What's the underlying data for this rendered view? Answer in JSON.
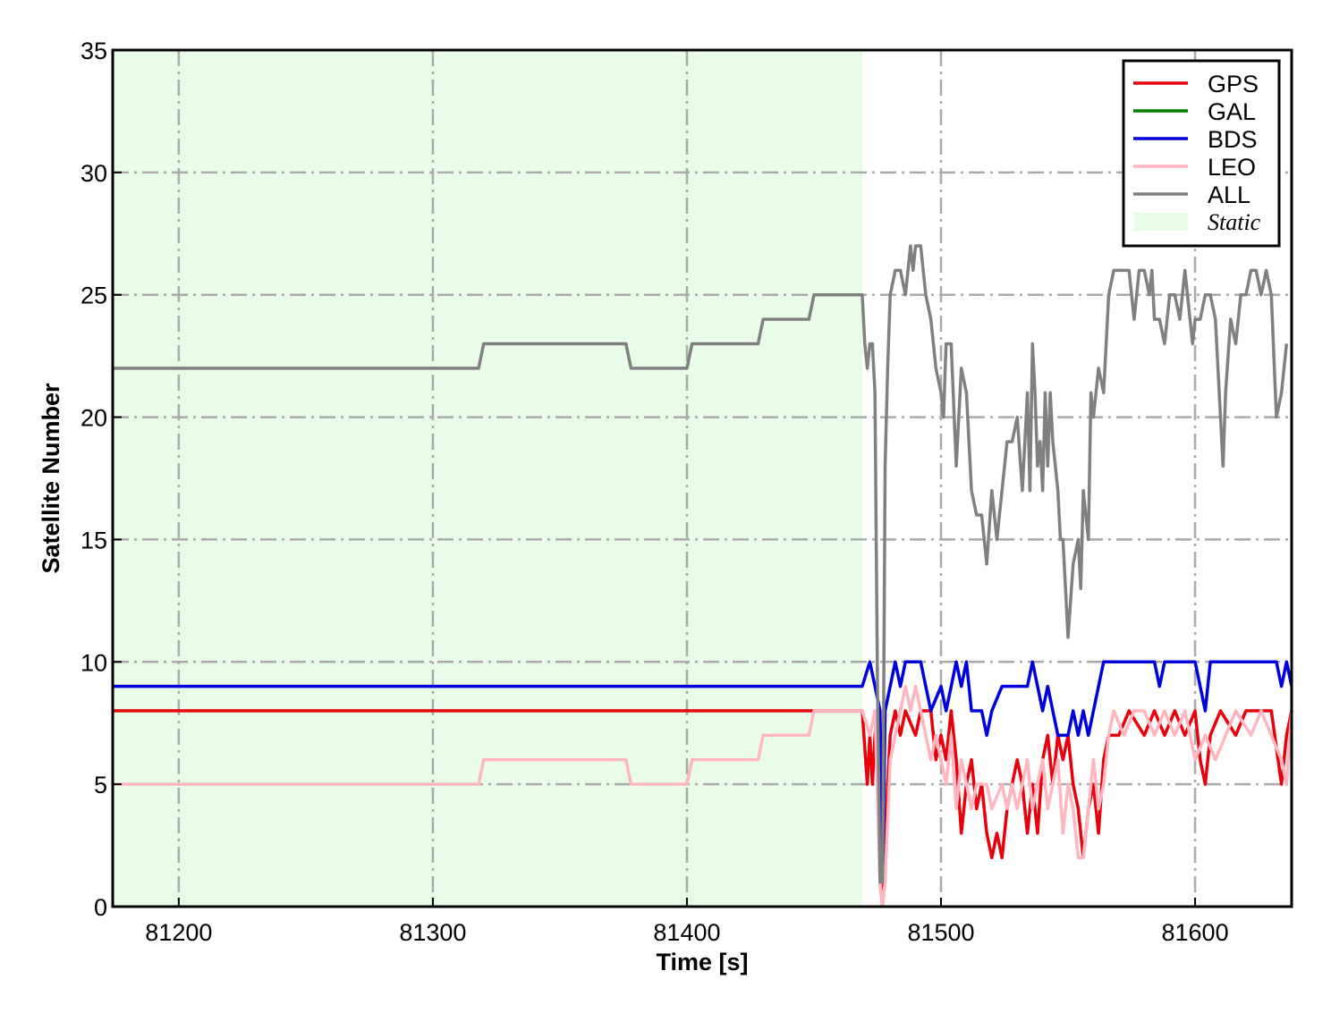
{
  "chart_data": {
    "type": "line",
    "xlabel": "Time [s]",
    "ylabel": "Satellite Number",
    "xlim": [
      81174,
      81638
    ],
    "ylim": [
      0,
      35
    ],
    "xticks": [
      81200,
      81300,
      81400,
      81500,
      81600
    ],
    "yticks": [
      0,
      5,
      10,
      15,
      20,
      25,
      30,
      35
    ],
    "grid": true,
    "legend_position": "top-right",
    "shaded_regions": [
      {
        "label": "Static",
        "x_start": 81174,
        "x_end": 81469,
        "color": "#e8fce8"
      }
    ],
    "series": [
      {
        "name": "GPS",
        "color": "#e8000b",
        "points": [
          [
            81174,
            8
          ],
          [
            81469,
            8
          ],
          [
            81471,
            5
          ],
          [
            81472,
            7
          ],
          [
            81473,
            5
          ],
          [
            81474,
            7
          ],
          [
            81475,
            8
          ],
          [
            81476,
            1
          ],
          [
            81477,
            0
          ],
          [
            81478,
            2
          ],
          [
            81479,
            5
          ],
          [
            81480,
            7
          ],
          [
            81482,
            8
          ],
          [
            81484,
            7
          ],
          [
            81486,
            8
          ],
          [
            81490,
            7
          ],
          [
            81492,
            8
          ],
          [
            81496,
            8
          ],
          [
            81498,
            6
          ],
          [
            81500,
            7
          ],
          [
            81502,
            6
          ],
          [
            81504,
            8
          ],
          [
            81506,
            6
          ],
          [
            81508,
            3
          ],
          [
            81510,
            5
          ],
          [
            81512,
            6
          ],
          [
            81514,
            4
          ],
          [
            81516,
            5
          ],
          [
            81518,
            3
          ],
          [
            81520,
            2
          ],
          [
            81522,
            3
          ],
          [
            81524,
            2
          ],
          [
            81526,
            4
          ],
          [
            81528,
            5
          ],
          [
            81530,
            6
          ],
          [
            81532,
            5
          ],
          [
            81534,
            3
          ],
          [
            81536,
            5
          ],
          [
            81538,
            3
          ],
          [
            81540,
            6
          ],
          [
            81542,
            7
          ],
          [
            81544,
            5
          ],
          [
            81546,
            7
          ],
          [
            81548,
            6
          ],
          [
            81550,
            7
          ],
          [
            81552,
            5
          ],
          [
            81554,
            4
          ],
          [
            81556,
            2
          ],
          [
            81558,
            4
          ],
          [
            81560,
            5
          ],
          [
            81562,
            3
          ],
          [
            81564,
            6
          ],
          [
            81566,
            7
          ],
          [
            81570,
            7
          ],
          [
            81574,
            8
          ],
          [
            81580,
            7
          ],
          [
            81584,
            8
          ],
          [
            81588,
            7
          ],
          [
            81592,
            8
          ],
          [
            81596,
            7
          ],
          [
            81600,
            8
          ],
          [
            81602,
            6
          ],
          [
            81604,
            5
          ],
          [
            81606,
            7
          ],
          [
            81610,
            8
          ],
          [
            81616,
            7
          ],
          [
            81620,
            8
          ],
          [
            81630,
            8
          ],
          [
            81634,
            5
          ],
          [
            81636,
            7
          ],
          [
            81638,
            8
          ]
        ]
      },
      {
        "name": "GAL",
        "color": "#008000",
        "points": []
      },
      {
        "name": "BDS",
        "color": "#0000dd",
        "points": [
          [
            81174,
            9
          ],
          [
            81469,
            9
          ],
          [
            81472,
            10
          ],
          [
            81474,
            9
          ],
          [
            81476,
            8
          ],
          [
            81477,
            1
          ],
          [
            81478,
            8
          ],
          [
            81480,
            9
          ],
          [
            81482,
            10
          ],
          [
            81484,
            9
          ],
          [
            81486,
            10
          ],
          [
            81492,
            10
          ],
          [
            81494,
            9
          ],
          [
            81496,
            8
          ],
          [
            81500,
            9
          ],
          [
            81502,
            8
          ],
          [
            81504,
            9
          ],
          [
            81506,
            10
          ],
          [
            81508,
            9
          ],
          [
            81510,
            10
          ],
          [
            81512,
            8
          ],
          [
            81516,
            8
          ],
          [
            81518,
            7
          ],
          [
            81520,
            8
          ],
          [
            81524,
            9
          ],
          [
            81534,
            9
          ],
          [
            81536,
            10
          ],
          [
            81538,
            9
          ],
          [
            81540,
            8
          ],
          [
            81542,
            9
          ],
          [
            81544,
            8
          ],
          [
            81546,
            7
          ],
          [
            81550,
            7
          ],
          [
            81552,
            8
          ],
          [
            81554,
            7
          ],
          [
            81556,
            8
          ],
          [
            81558,
            7
          ],
          [
            81560,
            8
          ],
          [
            81562,
            9
          ],
          [
            81564,
            10
          ],
          [
            81580,
            10
          ],
          [
            81584,
            10
          ],
          [
            81586,
            9
          ],
          [
            81588,
            10
          ],
          [
            81600,
            10
          ],
          [
            81602,
            9
          ],
          [
            81604,
            8
          ],
          [
            81606,
            10
          ],
          [
            81632,
            10
          ],
          [
            81634,
            9
          ],
          [
            81636,
            10
          ],
          [
            81638,
            9
          ]
        ]
      },
      {
        "name": "LEO",
        "color": "#ffb6c1",
        "points": [
          [
            81174,
            5
          ],
          [
            81318,
            5
          ],
          [
            81320,
            6
          ],
          [
            81376,
            6
          ],
          [
            81378,
            5
          ],
          [
            81400,
            5
          ],
          [
            81402,
            6
          ],
          [
            81428,
            6
          ],
          [
            81430,
            7
          ],
          [
            81448,
            7
          ],
          [
            81450,
            8
          ],
          [
            81469,
            8
          ],
          [
            81472,
            7
          ],
          [
            81474,
            8
          ],
          [
            81476,
            1
          ],
          [
            81477,
            0
          ],
          [
            81478,
            1
          ],
          [
            81480,
            6
          ],
          [
            81482,
            7
          ],
          [
            81484,
            8
          ],
          [
            81486,
            9
          ],
          [
            81488,
            8
          ],
          [
            81490,
            9
          ],
          [
            81492,
            8
          ],
          [
            81494,
            7
          ],
          [
            81496,
            6
          ],
          [
            81498,
            7
          ],
          [
            81500,
            6
          ],
          [
            81502,
            5
          ],
          [
            81504,
            7
          ],
          [
            81506,
            4
          ],
          [
            81508,
            6
          ],
          [
            81510,
            5
          ],
          [
            81512,
            4
          ],
          [
            81514,
            5
          ],
          [
            81518,
            5
          ],
          [
            81520,
            4
          ],
          [
            81524,
            5
          ],
          [
            81526,
            4
          ],
          [
            81528,
            5
          ],
          [
            81530,
            4
          ],
          [
            81532,
            5
          ],
          [
            81534,
            6
          ],
          [
            81536,
            4
          ],
          [
            81538,
            5
          ],
          [
            81540,
            6
          ],
          [
            81542,
            4
          ],
          [
            81544,
            5
          ],
          [
            81546,
            6
          ],
          [
            81548,
            3
          ],
          [
            81550,
            5
          ],
          [
            81552,
            4
          ],
          [
            81554,
            2
          ],
          [
            81556,
            2
          ],
          [
            81558,
            4
          ],
          [
            81560,
            6
          ],
          [
            81562,
            4
          ],
          [
            81564,
            5
          ],
          [
            81566,
            7
          ],
          [
            81568,
            8
          ],
          [
            81572,
            7
          ],
          [
            81576,
            8
          ],
          [
            81580,
            8
          ],
          [
            81584,
            7
          ],
          [
            81588,
            8
          ],
          [
            81592,
            7
          ],
          [
            81596,
            8
          ],
          [
            81600,
            6
          ],
          [
            81604,
            7
          ],
          [
            81608,
            6
          ],
          [
            81612,
            7
          ],
          [
            81616,
            8
          ],
          [
            81622,
            7
          ],
          [
            81626,
            8
          ],
          [
            81630,
            7
          ],
          [
            81634,
            6
          ],
          [
            81636,
            5
          ],
          [
            81638,
            8
          ]
        ]
      },
      {
        "name": "ALL",
        "color": "#808080",
        "points": [
          [
            81174,
            22
          ],
          [
            81318,
            22
          ],
          [
            81320,
            23
          ],
          [
            81376,
            23
          ],
          [
            81378,
            22
          ],
          [
            81400,
            22
          ],
          [
            81402,
            23
          ],
          [
            81428,
            23
          ],
          [
            81430,
            24
          ],
          [
            81448,
            24
          ],
          [
            81450,
            25
          ],
          [
            81469,
            25
          ],
          [
            81470,
            23
          ],
          [
            81471,
            22
          ],
          [
            81472,
            23
          ],
          [
            81473,
            23
          ],
          [
            81474,
            21
          ],
          [
            81475,
            9
          ],
          [
            81476,
            1
          ],
          [
            81477,
            1
          ],
          [
            81478,
            18
          ],
          [
            81479,
            22
          ],
          [
            81480,
            25
          ],
          [
            81482,
            26
          ],
          [
            81484,
            26
          ],
          [
            81486,
            25
          ],
          [
            81488,
            27
          ],
          [
            81489,
            26
          ],
          [
            81490,
            27
          ],
          [
            81492,
            27
          ],
          [
            81494,
            25
          ],
          [
            81496,
            24
          ],
          [
            81498,
            22
          ],
          [
            81500,
            21
          ],
          [
            81501,
            20
          ],
          [
            81502,
            23
          ],
          [
            81504,
            23
          ],
          [
            81506,
            18
          ],
          [
            81508,
            22
          ],
          [
            81510,
            21
          ],
          [
            81512,
            17
          ],
          [
            81514,
            16
          ],
          [
            81516,
            16
          ],
          [
            81518,
            14
          ],
          [
            81520,
            17
          ],
          [
            81522,
            15
          ],
          [
            81524,
            17
          ],
          [
            81526,
            19
          ],
          [
            81528,
            19
          ],
          [
            81530,
            20
          ],
          [
            81532,
            17
          ],
          [
            81534,
            21
          ],
          [
            81535,
            17
          ],
          [
            81536,
            23
          ],
          [
            81537,
            21
          ],
          [
            81538,
            18
          ],
          [
            81539,
            19
          ],
          [
            81540,
            17
          ],
          [
            81541,
            21
          ],
          [
            81542,
            18
          ],
          [
            81543,
            21
          ],
          [
            81544,
            19
          ],
          [
            81546,
            17
          ],
          [
            81547,
            15
          ],
          [
            81548,
            15
          ],
          [
            81550,
            11
          ],
          [
            81552,
            14
          ],
          [
            81554,
            15
          ],
          [
            81555,
            13
          ],
          [
            81556,
            17
          ],
          [
            81558,
            15
          ],
          [
            81559,
            21
          ],
          [
            81560,
            20
          ],
          [
            81562,
            22
          ],
          [
            81564,
            21
          ],
          [
            81566,
            25
          ],
          [
            81568,
            26
          ],
          [
            81570,
            26
          ],
          [
            81572,
            26
          ],
          [
            81574,
            26
          ],
          [
            81576,
            24
          ],
          [
            81578,
            26
          ],
          [
            81580,
            26
          ],
          [
            81582,
            25
          ],
          [
            81583,
            26
          ],
          [
            81584,
            24
          ],
          [
            81586,
            24
          ],
          [
            81588,
            23
          ],
          [
            81590,
            25
          ],
          [
            81592,
            25
          ],
          [
            81594,
            24
          ],
          [
            81596,
            26
          ],
          [
            81598,
            24
          ],
          [
            81599,
            23
          ],
          [
            81600,
            24
          ],
          [
            81602,
            24
          ],
          [
            81604,
            25
          ],
          [
            81606,
            25
          ],
          [
            81608,
            24
          ],
          [
            81610,
            20
          ],
          [
            81611,
            18
          ],
          [
            81612,
            21
          ],
          [
            81614,
            24
          ],
          [
            81616,
            23
          ],
          [
            81618,
            25
          ],
          [
            81620,
            25
          ],
          [
            81622,
            26
          ],
          [
            81624,
            26
          ],
          [
            81626,
            25
          ],
          [
            81628,
            26
          ],
          [
            81630,
            25
          ],
          [
            81632,
            20
          ],
          [
            81634,
            21
          ],
          [
            81636,
            23
          ]
        ]
      }
    ]
  }
}
